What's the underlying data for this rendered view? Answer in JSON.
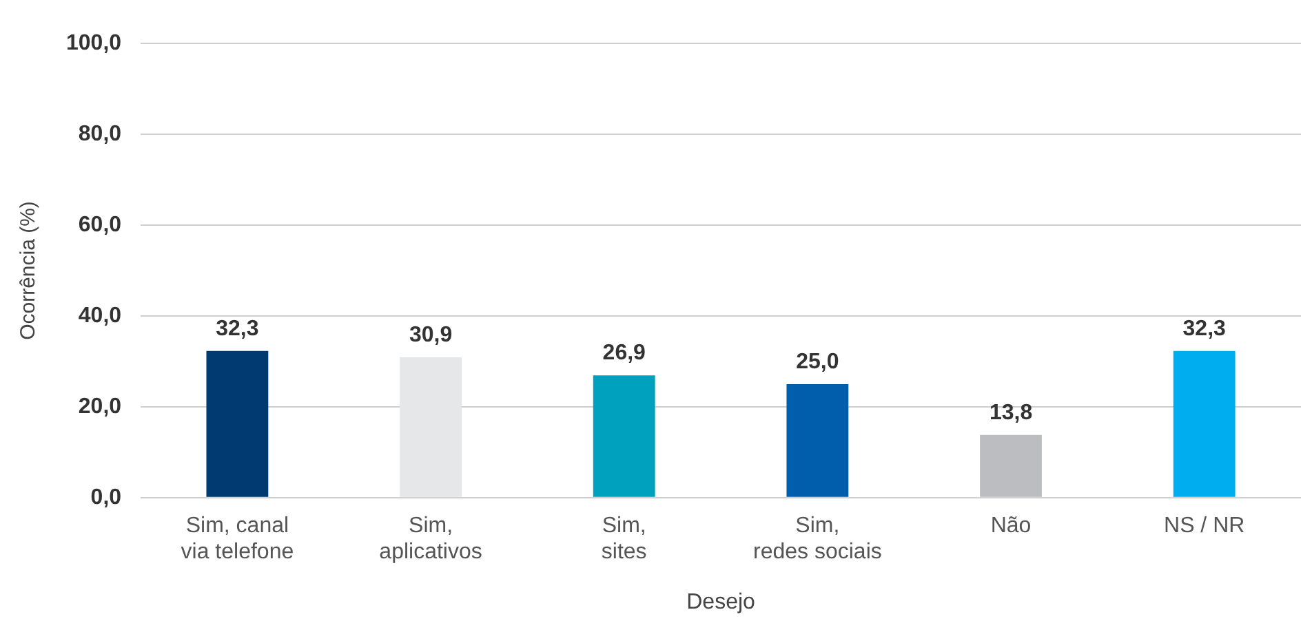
{
  "chart_data": {
    "type": "bar",
    "xlabel": "Desejo",
    "ylabel": "Ocorrência (%)",
    "categories": [
      "Sim, canal\nvia telefone",
      "Sim,\naplicativos",
      "Sim,\nsites",
      "Sim,\nredes sociais",
      "Não",
      "NS / NR"
    ],
    "values": [
      32.3,
      30.9,
      26.9,
      25.0,
      13.8,
      32.3
    ],
    "colors": [
      "#003a70",
      "#e6e7e9",
      "#00a0bf",
      "#005eac",
      "#bcbdc0",
      "#00adef"
    ],
    "value_labels": [
      "32,3",
      "30,9",
      "26,9",
      "25,0",
      "13,8",
      "32,3"
    ],
    "ylim": [
      0,
      100
    ],
    "yticks": [
      {
        "value": 0,
        "label": "0,0"
      },
      {
        "value": 20,
        "label": "20,0"
      },
      {
        "value": 40,
        "label": "40,0"
      },
      {
        "value": 60,
        "label": "60,0"
      },
      {
        "value": 80,
        "label": "80,0"
      },
      {
        "value": 100,
        "label": "100,0"
      }
    ],
    "grid": "y",
    "legend": false
  }
}
